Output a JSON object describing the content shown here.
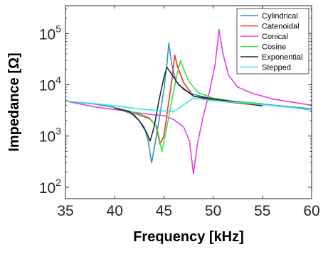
{
  "chart_data": {
    "type": "line",
    "xlabel": "Frequency [kHz]",
    "ylabel": "Impedance [Ω]",
    "xlim": [
      35,
      60
    ],
    "ylim": [
      60,
      350000
    ],
    "yscale": "log",
    "grid": false,
    "legend_position": "top-right",
    "x_ticks": [
      35,
      40,
      45,
      50,
      55,
      60
    ],
    "x_tick_labels": [
      "35",
      "40",
      "45",
      "50",
      "55",
      "60"
    ],
    "y_ticks": [
      100,
      1000,
      10000,
      100000
    ],
    "y_tick_labels": [
      {
        "base": "10",
        "exp": "2"
      },
      {
        "base": "10",
        "exp": "3"
      },
      {
        "base": "10",
        "exp": "4"
      },
      {
        "base": "10",
        "exp": "5"
      }
    ],
    "series": [
      {
        "name": "Cylindrical",
        "color": "#3b8fc4",
        "points": [
          [
            35,
            4800
          ],
          [
            38,
            4200
          ],
          [
            40,
            3600
          ],
          [
            42,
            2600
          ],
          [
            43,
            1500
          ],
          [
            43.4,
            800
          ],
          [
            43.75,
            300
          ],
          [
            44.1,
            700
          ],
          [
            44.5,
            2000
          ],
          [
            45,
            8000
          ],
          [
            45.3,
            25000
          ],
          [
            45.5,
            65000
          ],
          [
            45.8,
            25000
          ],
          [
            46.2,
            12000
          ],
          [
            47,
            8000
          ],
          [
            48,
            6500
          ],
          [
            50,
            5300
          ],
          [
            52,
            4700
          ],
          [
            55,
            4200
          ],
          [
            58,
            3700
          ],
          [
            60,
            3400
          ]
        ]
      },
      {
        "name": "Catenoidal",
        "color": "#e8312c",
        "points": [
          [
            40,
            3600
          ],
          [
            42,
            2800
          ],
          [
            43.5,
            2200
          ],
          [
            44.2,
            1600
          ],
          [
            44.6,
            700
          ],
          [
            45,
            1000
          ],
          [
            45.4,
            3500
          ],
          [
            45.8,
            12000
          ],
          [
            46.1,
            38000
          ],
          [
            46.4,
            22000
          ],
          [
            47,
            11000
          ],
          [
            48,
            6000
          ],
          [
            50,
            5000
          ],
          [
            52,
            4500
          ],
          [
            55,
            3900
          ]
        ]
      },
      {
        "name": "Conical",
        "color": "#e040e0",
        "points": [
          [
            35,
            4800
          ],
          [
            38,
            3700
          ],
          [
            40,
            3300
          ],
          [
            42,
            2900
          ],
          [
            44,
            2600
          ],
          [
            45,
            2500
          ],
          [
            46,
            2100
          ],
          [
            47,
            1500
          ],
          [
            47.6,
            800
          ],
          [
            48,
            180
          ],
          [
            48.4,
            700
          ],
          [
            49,
            2500
          ],
          [
            49.6,
            7000
          ],
          [
            50.2,
            25000
          ],
          [
            50.6,
            120000
          ],
          [
            51,
            40000
          ],
          [
            51.6,
            15000
          ],
          [
            52.5,
            9000
          ],
          [
            54,
            6800
          ],
          [
            56,
            5300
          ],
          [
            58,
            4600
          ],
          [
            60,
            4000
          ]
        ]
      },
      {
        "name": "Cosine",
        "color": "#3fe040",
        "points": [
          [
            40,
            3600
          ],
          [
            42,
            2900
          ],
          [
            43.5,
            2300
          ],
          [
            44.3,
            1500
          ],
          [
            44.8,
            500
          ],
          [
            45.3,
            1500
          ],
          [
            45.8,
            5000
          ],
          [
            46.3,
            15000
          ],
          [
            46.7,
            30000
          ],
          [
            47.1,
            18000
          ],
          [
            47.6,
            11000
          ],
          [
            48.5,
            7000
          ],
          [
            50,
            5500
          ],
          [
            52,
            4800
          ],
          [
            55,
            4300
          ]
        ]
      },
      {
        "name": "Exponential",
        "color": "#1a2d35",
        "points": [
          [
            40,
            3500
          ],
          [
            41.5,
            3000
          ],
          [
            42.5,
            2000
          ],
          [
            43.2,
            1200
          ],
          [
            43.6,
            800
          ],
          [
            44,
            1500
          ],
          [
            44.5,
            5000
          ],
          [
            45,
            14000
          ],
          [
            45.3,
            22000
          ],
          [
            45.8,
            16000
          ],
          [
            46.5,
            10000
          ],
          [
            48,
            6000
          ],
          [
            50,
            5300
          ],
          [
            52,
            4700
          ],
          [
            55,
            3900
          ]
        ]
      },
      {
        "name": "Stepped",
        "color": "#40e0e0",
        "points": [
          [
            35,
            4800
          ],
          [
            38,
            4300
          ],
          [
            40,
            3900
          ],
          [
            43,
            3300
          ],
          [
            46,
            3000
          ],
          [
            48,
            5500
          ],
          [
            50,
            4900
          ],
          [
            52,
            4600
          ],
          [
            55,
            4100
          ],
          [
            58,
            3600
          ],
          [
            60,
            3200
          ]
        ]
      }
    ]
  }
}
